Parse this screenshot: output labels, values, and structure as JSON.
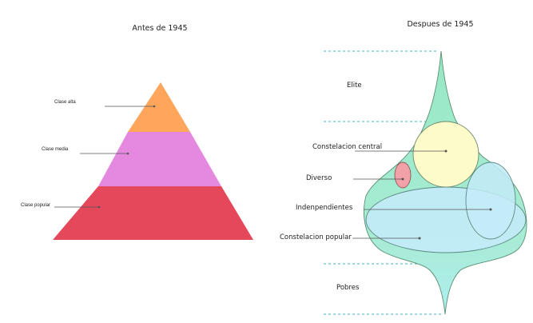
{
  "left_diagram": {
    "title": "Antes de 1945",
    "labels": {
      "top": "Clase alta",
      "middle": "Clase media",
      "bottom": "Clase popular"
    },
    "colors": {
      "top": "#ffa65c",
      "middle": "#e488e0",
      "bottom": "#e5485a"
    }
  },
  "right_diagram": {
    "title": "Despues de 1945",
    "labels": {
      "elite": "Elite",
      "constelacion_central": "Constelacion central",
      "diverso": "Diverso",
      "independientes": "Indenpendientes",
      "constelacion_popular": "Constelacion popular",
      "pobres": "Pobres"
    },
    "colors": {
      "upper_body": "#97e8c3",
      "lower_body": "#aeeef0",
      "constelacion_central": "#fdfbc9",
      "diverso": "#f3a1a8",
      "independientes": "#c3ebf8",
      "constelacion_popular": "#c3ebf8",
      "guides": "#3fb6c6"
    }
  }
}
